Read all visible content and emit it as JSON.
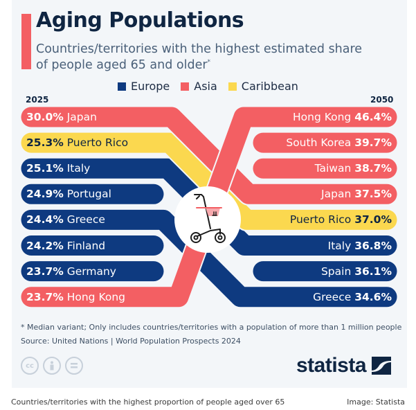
{
  "header": {
    "title": "Aging Populations",
    "subtitle_line1": "Countries/territories with the highest estimated share",
    "subtitle_line2": "of people aged 65 and older",
    "subtitle_mark": "*"
  },
  "colors": {
    "Europe": "#0e3a80",
    "Asia": "#f35f63",
    "Caribbean": "#fbd84f",
    "accent": "#f35f63",
    "title": "#0f2542"
  },
  "chart_data": {
    "type": "table",
    "title": "Aging Populations",
    "legend": [
      {
        "label": "Europe",
        "color": "#0e3a80"
      },
      {
        "label": "Asia",
        "color": "#f35f63"
      },
      {
        "label": "Caribbean",
        "color": "#fbd84f"
      }
    ],
    "legend_position": "top",
    "left_year": "2025",
    "right_year": "2050",
    "left": [
      {
        "value": "30.0%",
        "name": "Japan",
        "region": "Asia"
      },
      {
        "value": "25.3%",
        "name": "Puerto Rico",
        "region": "Caribbean"
      },
      {
        "value": "25.1%",
        "name": "Italy",
        "region": "Europe"
      },
      {
        "value": "24.9%",
        "name": "Portugal",
        "region": "Europe"
      },
      {
        "value": "24.4%",
        "name": "Greece",
        "region": "Europe"
      },
      {
        "value": "24.2%",
        "name": "Finland",
        "region": "Europe"
      },
      {
        "value": "23.7%",
        "name": "Germany",
        "region": "Europe"
      },
      {
        "value": "23.7%",
        "name": "Hong Kong",
        "region": "Asia"
      }
    ],
    "right": [
      {
        "value": "46.4%",
        "name": "Hong Kong",
        "region": "Asia"
      },
      {
        "value": "39.7%",
        "name": "South Korea",
        "region": "Asia"
      },
      {
        "value": "38.7%",
        "name": "Taiwan",
        "region": "Asia"
      },
      {
        "value": "37.5%",
        "name": "Japan",
        "region": "Asia"
      },
      {
        "value": "37.0%",
        "name": "Puerto Rico",
        "region": "Caribbean"
      },
      {
        "value": "36.8%",
        "name": "Italy",
        "region": "Europe"
      },
      {
        "value": "36.1%",
        "name": "Spain",
        "region": "Europe"
      },
      {
        "value": "34.6%",
        "name": "Greece",
        "region": "Europe"
      }
    ]
  },
  "footer": {
    "note": "* Median variant; Only includes countries/territories with a population of more than 1 million people",
    "source": "Source: United Nations | World Population Prospects 2024",
    "cc_icons": [
      "cc-icon",
      "by-icon",
      "nd-icon"
    ],
    "cc_label": "cc",
    "logo": "statista"
  },
  "caption": {
    "text": "Countries/territories with the highest proportion of people aged over 65",
    "credit": "Image: Statista"
  }
}
